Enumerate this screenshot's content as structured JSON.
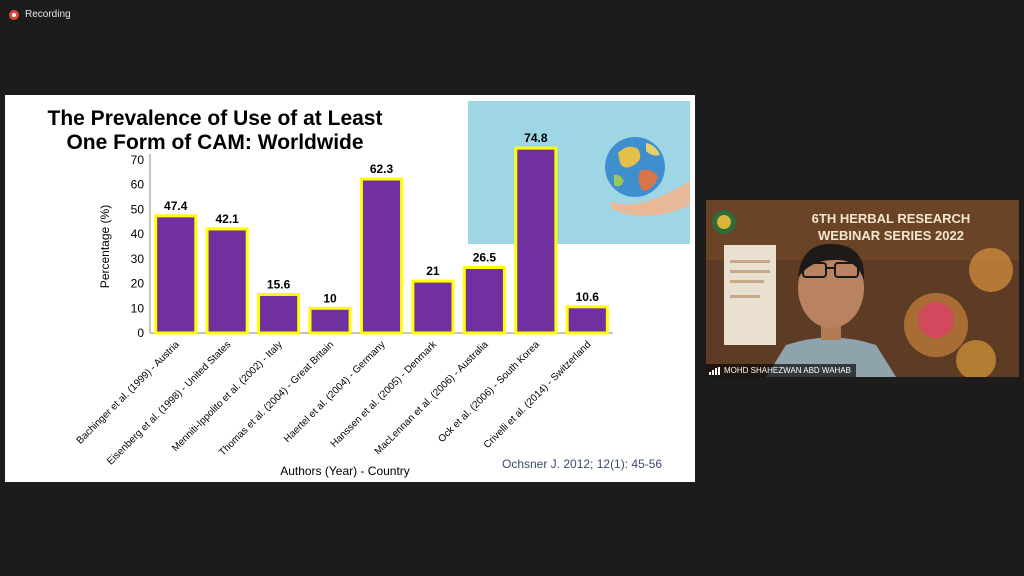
{
  "recording": {
    "label": "Recording"
  },
  "slide": {
    "title_line1": "The Prevalence of Use of at Least",
    "title_line2": "One Form of CAM: Worldwide",
    "citation": "Ochsner J. 2012; 12(1): 45-56"
  },
  "chart_data": {
    "type": "bar",
    "categories": [
      "Bachinger et al. (1999) - Austria",
      "Eisenberg et al. (1998) - United States",
      "Menniti-Ippolito et al. (2002) - Italy",
      "Thomas et al. (2004) - Great Britain",
      "Haertel et al. (2004) - Germany",
      "Hanssen et al. (2005) - Denmark",
      "MacLennan et al. (2006) - Australia",
      "Ock et al. (2006) - South Korea",
      "Crivelli et al. (2014) - Switzerland"
    ],
    "values": [
      47.4,
      42.1,
      15.6,
      10,
      62.3,
      21,
      26.5,
      74.8,
      10.6
    ],
    "value_labels": [
      "47.4",
      "42.1",
      "15.6",
      "10",
      "62.3",
      "21",
      "26.5",
      "74.8",
      "10.6"
    ],
    "yticks": [
      "0",
      "10",
      "20",
      "30",
      "40",
      "50",
      "60",
      "70"
    ],
    "ylim": [
      0,
      70
    ],
    "xlabel": "Authors (Year) - Country",
    "ylabel": "Percentage (%)",
    "bar_color": "#7030a0",
    "bar_border_color": "#ffff00",
    "grid": false,
    "legend": "none"
  },
  "participant": {
    "name": "MOHD SHAHEZWAN ABD WAHAB",
    "banner_line1": "6TH HERBAL RESEARCH",
    "banner_line2": "WEBINAR SERIES 2022"
  },
  "colors": {
    "background": "#1c1c1c",
    "recording_dot": "#e0453a",
    "photo_bg": "#9fd6e6"
  },
  "icons": {
    "recording": "recording-dot-icon",
    "signal": "signal-bars-icon"
  }
}
